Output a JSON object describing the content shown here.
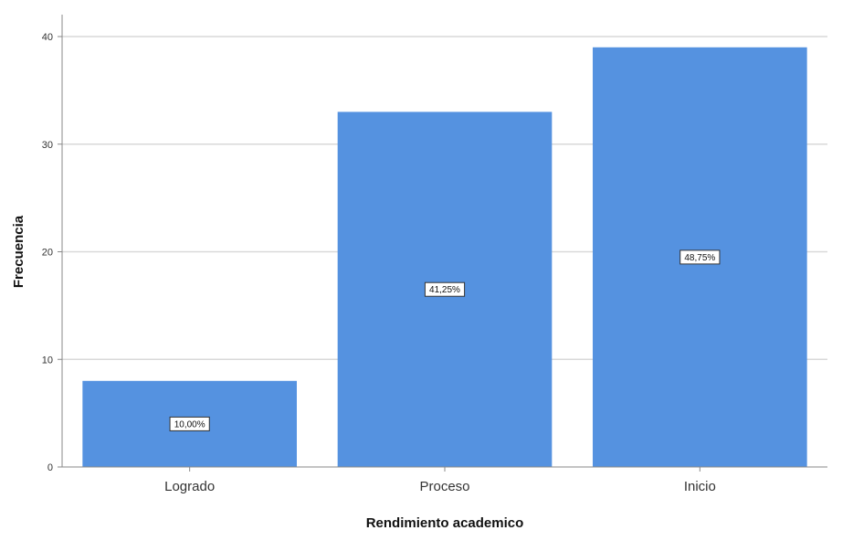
{
  "chart_data": {
    "type": "bar",
    "categories": [
      "Logrado",
      "Proceso",
      "Inicio"
    ],
    "values": [
      8,
      33,
      39
    ],
    "data_labels": [
      "10,00%",
      "41,25%",
      "48,75%"
    ],
    "xlabel": "Rendimiento academico",
    "ylabel": "Frecuencia",
    "ylim": [
      0,
      40
    ],
    "yticks": [
      0,
      10,
      20,
      30,
      40
    ],
    "grid": true,
    "bar_color": "#5592E0"
  }
}
